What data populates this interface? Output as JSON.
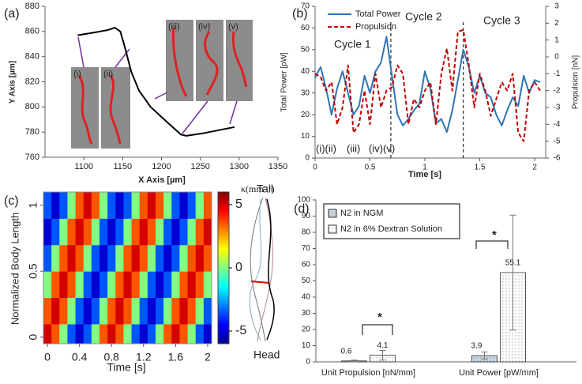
{
  "chart_data": [
    {
      "type": "line",
      "panel": "(a)",
      "xlabel": "X Axis [µm]",
      "ylabel": "Y Axis [µm]",
      "x": [
        1092,
        1112,
        1130,
        1140,
        1147,
        1153,
        1161,
        1171,
        1186,
        1207,
        1225,
        1232,
        1253,
        1294
      ],
      "series": [
        {
          "color": "#000000",
          "values": [
            857,
            859,
            861,
            863,
            860,
            847,
            828,
            813,
            800,
            788,
            778,
            777,
            779,
            784
          ]
        }
      ],
      "xlim": [
        1050,
        1350
      ],
      "ylim": [
        760,
        880
      ],
      "xticks": [
        1100,
        1150,
        1200,
        1250,
        1300,
        1350
      ],
      "yticks": [
        760,
        780,
        800,
        820,
        840,
        860,
        880
      ],
      "annotations": [
        "(i)",
        "(ii)",
        "(iii)",
        "(iv)",
        "(v)"
      ]
    },
    {
      "type": "line",
      "panel": "(b)",
      "xlabel": "Time [s]",
      "ylabel": "Total Power [pW]",
      "y2label": "Propulsion [nN]",
      "x": [
        0,
        0.05,
        0.1,
        0.15,
        0.2,
        0.25,
        0.3,
        0.35,
        0.4,
        0.45,
        0.5,
        0.55,
        0.6,
        0.65,
        0.7,
        0.75,
        0.8,
        0.85,
        0.9,
        0.95,
        1.0,
        1.05,
        1.1,
        1.15,
        1.2,
        1.25,
        1.3,
        1.35,
        1.4,
        1.45,
        1.5,
        1.55,
        1.6,
        1.65,
        1.7,
        1.75,
        1.8,
        1.85,
        1.9,
        1.95,
        2.0,
        2.05
      ],
      "series": [
        {
          "name": "Total Power",
          "color": "#2e75b6",
          "values": [
            37,
            42,
            32,
            20,
            32,
            40,
            30,
            20,
            24,
            38,
            30,
            40,
            44,
            56,
            38,
            20,
            15,
            18,
            22,
            25,
            40,
            32,
            16,
            18,
            12,
            22,
            36,
            50,
            42,
            30,
            38,
            30,
            28,
            20,
            15,
            22,
            28,
            24,
            38,
            30,
            36,
            35
          ]
        },
        {
          "name": "Propulsion",
          "color": "#c00000",
          "dash": true,
          "axis": "y2",
          "values": [
            -1,
            -1.2,
            -2,
            -1.5,
            -4,
            -3,
            -0.5,
            -4.5,
            -4,
            -2,
            -4,
            -1,
            -3,
            -2,
            -1.8,
            -0.5,
            -1,
            -4,
            -2.5,
            -3,
            -2,
            -1.5,
            -4,
            -1,
            0.5,
            -2,
            1.5,
            1.6,
            -0.5,
            -3,
            -1,
            -2,
            -3.5,
            -2.5,
            -1.5,
            -2,
            -1,
            -4.5,
            -5,
            -2,
            -1.5,
            -2
          ]
        }
      ],
      "xlim": [
        0,
        2.1
      ],
      "ylim": [
        0,
        70
      ],
      "y2lim": [
        -6,
        3
      ],
      "xticks": [
        0,
        0.5,
        1,
        1.5,
        2
      ],
      "yticks": [
        0,
        10,
        20,
        30,
        40,
        50,
        60,
        70
      ],
      "y2ticks": [
        -6,
        -5,
        -4,
        -3,
        -2,
        -1,
        0,
        1,
        2,
        3
      ],
      "vlines": [
        0.69,
        1.35
      ],
      "legend": "upper left",
      "annotations": [
        "Cycle 1",
        "Cycle 2",
        "Cycle 3",
        "(i)(ii)",
        "(iii)",
        "(iv)(v)"
      ]
    },
    {
      "type": "heatmap",
      "panel": "(c)",
      "xlabel": "Time [s]",
      "ylabel": "Normalized Body Length",
      "colorbar_label": "κ(mm⁻¹)",
      "x": [
        0,
        0.1,
        0.2,
        0.3,
        0.4,
        0.5,
        0.6,
        0.7,
        0.8,
        0.9,
        1.0,
        1.1,
        1.2,
        1.3,
        1.4,
        1.5,
        1.6,
        1.7,
        1.8,
        1.9,
        2.0
      ],
      "y": [
        0,
        0.2,
        0.4,
        0.6,
        0.8,
        1
      ],
      "z": [
        [
          5,
          3.5,
          0,
          -3.5,
          -5,
          -3.5,
          0,
          3.5,
          5,
          3.5,
          0,
          -3.5,
          -5,
          -3.5,
          0,
          3.5,
          5,
          3.5,
          0,
          -3.5,
          -5
        ],
        [
          3.5,
          5,
          3.5,
          0,
          -3.5,
          -5,
          -3.5,
          0,
          3.5,
          5,
          3.5,
          0,
          -3.5,
          -5,
          -3.5,
          0,
          3.5,
          5,
          3.5,
          0,
          -3.5
        ],
        [
          0,
          3.5,
          5,
          3.5,
          0,
          -3.5,
          -5,
          -3.5,
          0,
          3.5,
          5,
          3.5,
          0,
          -3.5,
          -5,
          -3.5,
          0,
          3.5,
          5,
          3.5,
          0
        ],
        [
          -3.5,
          0,
          3.5,
          5,
          3.5,
          0,
          -3.5,
          -5,
          -3.5,
          0,
          3.5,
          5,
          3.5,
          0,
          -3.5,
          -5,
          -3.5,
          0,
          3.5,
          5,
          3.5
        ],
        [
          -5,
          -3.5,
          0,
          3.5,
          5,
          3.5,
          0,
          -3.5,
          -5,
          -3.5,
          0,
          3.5,
          5,
          3.5,
          0,
          -3.5,
          -5,
          -3.5,
          0,
          3.5,
          5
        ],
        [
          -3.5,
          -5,
          -3.5,
          0,
          3.5,
          5,
          3.5,
          0,
          -3.5,
          -5,
          -3.5,
          0,
          3.5,
          5,
          3.5,
          0,
          -3.5,
          -5,
          -3.5,
          0,
          3.5
        ]
      ],
      "xlim": [
        -0.05,
        2.05
      ],
      "ylim": [
        -0.05,
        1.1
      ],
      "xticks": [
        0,
        0.4,
        0.8,
        1.2,
        1.6,
        2
      ],
      "yticks": [
        0,
        0.5,
        1
      ],
      "clim": [
        -6,
        6
      ],
      "cticks": [
        -5,
        0,
        5
      ],
      "colormap": "jet",
      "annotations": [
        "Tail",
        "Head"
      ]
    },
    {
      "type": "bar",
      "panel": "(d)",
      "categories": [
        "Unit Propulsion [nN/mm]",
        "Unit Power [pW/mm]"
      ],
      "series": [
        {
          "name": "N2 in NGM",
          "color": "#c9d6e3",
          "values": [
            0.6,
            3.9
          ],
          "errors": [
            0.5,
            2.2
          ]
        },
        {
          "name": "N2 in 6% Dextran Solution",
          "color": "#ffffff",
          "values": [
            4.1,
            55.1
          ],
          "errors": [
            3,
            35.5
          ]
        }
      ],
      "ylim": [
        0,
        100
      ],
      "yticks": [
        0,
        10,
        20,
        30,
        40,
        50,
        60,
        70,
        80,
        90,
        100
      ],
      "legend": "upper left",
      "annotations": [
        "*",
        "*"
      ]
    }
  ]
}
